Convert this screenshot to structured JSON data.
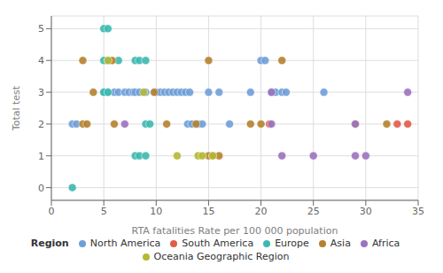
{
  "chart_data": {
    "type": "scatter",
    "xlabel": "RTA fatalities Rate per 100 000 population",
    "ylabel": "Total test",
    "xlim": [
      0,
      35
    ],
    "ylim": [
      -0.4,
      5.4
    ],
    "xticks": [
      0,
      5,
      10,
      15,
      20,
      25,
      30,
      35
    ],
    "yticks": [
      0,
      1,
      2,
      3,
      4,
      5
    ],
    "grid": true,
    "legend": "bottom",
    "legend_title": "Region",
    "marker": "circle",
    "series": [
      {
        "name": "North America",
        "color": "#6f9fd8",
        "x": [
          2.0,
          2.4,
          5.0,
          5.4,
          6.0,
          6.4,
          7.0,
          7.4,
          7.8,
          8.0,
          8.4,
          9.0,
          10.0,
          10.4,
          10.8,
          11.2,
          11.6,
          12.0,
          12.4,
          12.8,
          13.2,
          13.0,
          13.4,
          14.0,
          14.4,
          15.0,
          16.0,
          17.0,
          19.0,
          20.0,
          20.4,
          21.0,
          21.4,
          22.0,
          22.4,
          26.0
        ],
        "values": [
          2,
          2,
          3,
          3,
          3,
          3,
          3,
          3,
          3,
          3,
          3,
          3,
          3,
          3,
          3,
          3,
          3,
          3,
          3,
          3,
          3,
          2,
          2,
          2,
          2,
          3,
          3,
          2,
          3,
          4,
          4,
          3,
          3,
          3,
          3,
          3
        ]
      },
      {
        "name": "South America",
        "color": "#e05c4b",
        "x": [
          20.8,
          33.0,
          34.0
        ],
        "values": [
          2,
          2,
          2
        ]
      },
      {
        "name": "Europe",
        "color": "#3cb8b0",
        "x": [
          2.0,
          5.0,
          5.4,
          5.0,
          5.4,
          5.0,
          5.4,
          6.4,
          8.0,
          8.4,
          9.0,
          8.0,
          8.4,
          9.0,
          9.4,
          9.0
        ],
        "values": [
          0,
          5,
          5,
          4,
          4,
          3,
          3,
          4,
          4,
          4,
          4,
          1,
          1,
          2,
          2,
          1
        ]
      },
      {
        "name": "Asia",
        "color": "#b5812e",
        "x": [
          3.0,
          3.0,
          3.4,
          4.0,
          5.8,
          6.0,
          9.8,
          11.0,
          13.8,
          15.0,
          15.0,
          15.4,
          16.0,
          19.0,
          20.0,
          22.0,
          29.0,
          32.0
        ],
        "values": [
          4,
          2,
          2,
          3,
          4,
          2,
          3,
          2,
          2,
          4,
          1,
          1,
          1,
          2,
          2,
          4,
          2,
          2
        ]
      },
      {
        "name": "Africa",
        "color": "#9b72be",
        "x": [
          7.0,
          21.0,
          21.0,
          22.0,
          25.0,
          29.0,
          29.0,
          30.0,
          34.0
        ],
        "values": [
          2,
          3,
          2,
          1,
          1,
          2,
          1,
          1,
          3
        ]
      },
      {
        "name": "Oceania Geographic Region",
        "color": "#b5b832",
        "x": [
          5.4,
          8.8,
          12.0,
          14.0,
          14.4,
          15.4
        ],
        "values": [
          4,
          3,
          1,
          1,
          1,
          1
        ]
      }
    ]
  }
}
